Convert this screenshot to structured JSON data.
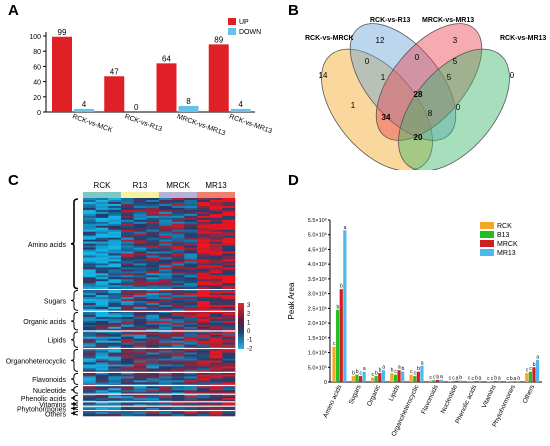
{
  "panels": {
    "a": "A",
    "b": "B",
    "c": "C",
    "d": "D"
  },
  "colors": {
    "up": "#e02027",
    "down": "#64c3e8",
    "venn": [
      "#f5a623",
      "#6ba3d6",
      "#e8454d",
      "#3cb96a"
    ],
    "heat_cols": [
      "#7fc7c4",
      "#f5f2a0",
      "#b7b1d6",
      "#f0806e"
    ],
    "d_series": [
      "#f5a623",
      "#22c01f",
      "#cc1f1f",
      "#4db7ef"
    ]
  },
  "chart_data": [
    {
      "type": "bar",
      "panel": "A",
      "categories": [
        "RCK-vs-MCK",
        "RCK-vs-R13",
        "MRCK-vs-MR13",
        "RCK-vs-MR13"
      ],
      "series": [
        {
          "name": "UP",
          "values": [
            99,
            47,
            64,
            89
          ]
        },
        {
          "name": "DOWN",
          "values": [
            4,
            0,
            8,
            4
          ]
        }
      ],
      "ylim": [
        0,
        100
      ],
      "yticks": [
        "0",
        "20",
        "40",
        "60",
        "80",
        "100"
      ],
      "legend": "top-right"
    },
    {
      "type": "venn",
      "panel": "B",
      "sets": [
        "RCK-vs-MRCK",
        "RCK-vs-R13",
        "MRCK-vs-MR13",
        "RCK-vs-MR13"
      ],
      "regions": {
        "A_only": 14,
        "B_only": 12,
        "C_only": 3,
        "D_only": 0,
        "AB": 0,
        "BC": 0,
        "CD": 5,
        "ABC": 1,
        "BCD": 5,
        "ABCD": 28,
        "AC_left": 1,
        "ACD": 34,
        "AD": 20,
        "BD": 8,
        "ABD": 0
      }
    },
    {
      "type": "heatmap",
      "panel": "C",
      "columns": [
        "RCK",
        "R13",
        "MRCK",
        "MR13"
      ],
      "groups": [
        "Amino acids",
        "Sugars",
        "Organic acids",
        "Lipids",
        "Organoheterocyclic",
        "Flavonoids",
        "Nucleotide",
        "Phenolic acids",
        "Vitamins",
        "Phytohormones",
        "Others"
      ],
      "colorbar_ticks": [
        "3",
        "2",
        "1",
        "0",
        "-1",
        "-2"
      ]
    },
    {
      "type": "bar",
      "panel": "D",
      "ylabel": "Peak Area",
      "categories": [
        "Amino acids",
        "Sugars",
        "Organic",
        "Lipids",
        "Organoheterocyclic",
        "Flavonoids",
        "Nucleotide",
        "Phenolic acids",
        "Vitamins",
        "Phytohormones",
        "Others"
      ],
      "series": [
        {
          "name": "RCK",
          "values": [
            1.2,
            0.2,
            0.15,
            0.3,
            0.25,
            0.05,
            0.03,
            0.03,
            0.02,
            0.02,
            0.3
          ]
        },
        {
          "name": "B13",
          "values": [
            2.45,
            0.25,
            0.2,
            0.25,
            0.2,
            0.06,
            0.03,
            0.02,
            0.02,
            0.01,
            0.35
          ]
        },
        {
          "name": "MRCK",
          "values": [
            3.15,
            0.2,
            0.3,
            0.4,
            0.35,
            0.07,
            0.04,
            0.03,
            0.03,
            0.02,
            0.5
          ]
        },
        {
          "name": "MR13",
          "values": [
            5.15,
            0.35,
            0.4,
            0.35,
            0.55,
            0.08,
            0.05,
            0.04,
            0.04,
            0.03,
            0.75
          ]
        }
      ],
      "letters": [
        [
          "c",
          "b",
          "b",
          "a"
        ],
        [
          "b",
          "b",
          "c",
          "a"
        ],
        [
          "c",
          "b",
          "b",
          "a"
        ],
        [
          "b",
          "c",
          "a",
          "b"
        ],
        [
          "c",
          "c",
          "b",
          "a"
        ],
        [
          "c",
          "c",
          "b",
          "a"
        ],
        [
          "c",
          "c",
          "a",
          "b"
        ],
        [
          "c",
          "c",
          "b",
          "a"
        ],
        [
          "c",
          "c",
          "b",
          "a"
        ],
        [
          "c",
          "b",
          "a",
          "a"
        ],
        [
          "c",
          "c",
          "b",
          "a"
        ]
      ],
      "ylim": [
        0,
        5.5
      ],
      "yticks": [
        "0",
        "5.0×10⁵",
        "1.0×10⁶",
        "1.5×10⁶",
        "2.0×10⁶",
        "2.5×10⁶",
        "3.0×10⁶",
        "3.5×10⁶",
        "4.0×10⁶",
        "4.5×10⁶",
        "5.0×10⁶",
        "5.5×10⁶"
      ],
      "legend": "top-right"
    }
  ]
}
